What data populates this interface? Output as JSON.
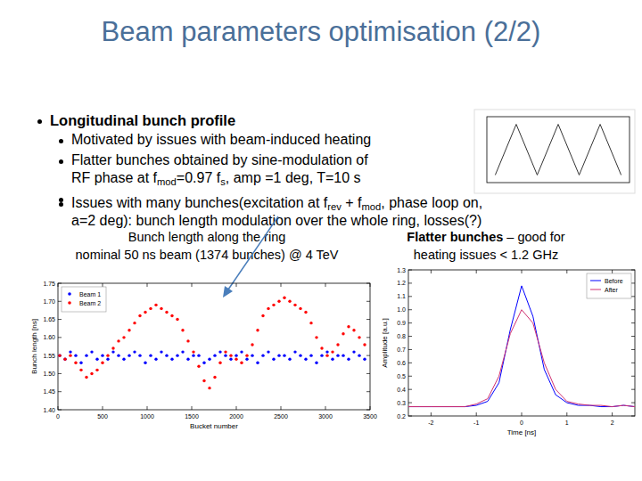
{
  "slide": {
    "title": "Beam parameters optimisation (2/2)",
    "bullets": [
      {
        "text": "Longitudinal bunch profile",
        "sub": [
          [
            [
              "Motivated by issues with beam-induced heating"
            ]
          ],
          [
            [
              "Flatter bunches obtained by sine-modulation of"
            ],
            [
              "RF phase at f",
              {
                "sub": "mod"
              },
              "=0.97 f",
              {
                "sub": "s"
              },
              ", amp =1 deg, T=10 s"
            ]
          ],
          [
            [
              "Issues with many bunches(excitation at f",
              {
                "sub": "rev"
              },
              " + f",
              {
                "sub": "mod"
              },
              ", phase loop on,"
            ],
            [
              "a=2 deg): bunch length modulation over the whole ring, losses(?)"
            ]
          ]
        ]
      }
    ],
    "captions": [
      [
        [
          "Bunch length along the ring"
        ],
        [
          "nominal 50 ns beam (1374 bunches) @ 4 TeV"
        ]
      ],
      [
        [
          {
            "b": "Flatter bunches"
          },
          " – good for"
        ],
        [
          "heating issues < 1.2 GHz"
        ]
      ]
    ]
  },
  "chart_data": [
    {
      "type": "line",
      "x": [
        0,
        5,
        10,
        15,
        20,
        25,
        30
      ],
      "values": [
        -1,
        1,
        -1,
        1,
        -1,
        1,
        -1
      ],
      "color": "#333333",
      "xlim": [
        -2,
        32
      ],
      "ylim": [
        -1.3,
        1.3
      ],
      "tick_labels": false,
      "grid": false
    },
    {
      "type": "scatter",
      "x_label": "Bucket number",
      "y_label": "Bunch length [ns]",
      "x": [
        20,
        80,
        140,
        200,
        260,
        320,
        380,
        440,
        500,
        560,
        620,
        680,
        740,
        800,
        860,
        920,
        980,
        1040,
        1100,
        1160,
        1220,
        1280,
        1340,
        1400,
        1460,
        1520,
        1580,
        1640,
        1700,
        1760,
        1820,
        1880,
        1940,
        2000,
        2060,
        2120,
        2180,
        2240,
        2300,
        2360,
        2420,
        2480,
        2540,
        2600,
        2660,
        2720,
        2780,
        2840,
        2900,
        2960,
        3020,
        3080,
        3140,
        3200,
        3260,
        3320,
        3380,
        3440
      ],
      "series": [
        {
          "name": "Beam 1",
          "color": "#0000ff",
          "marker": "circle",
          "values": [
            1.55,
            1.54,
            1.56,
            1.55,
            1.53,
            1.55,
            1.56,
            1.54,
            1.55,
            1.54,
            1.56,
            1.55,
            1.54,
            1.55,
            1.56,
            1.55,
            1.53,
            1.55,
            1.54,
            1.56,
            1.55,
            1.54,
            1.55,
            1.56,
            1.54,
            1.55,
            1.55,
            1.53,
            1.54,
            1.55,
            1.56,
            1.55,
            1.54,
            1.55,
            1.56,
            1.54,
            1.55,
            1.53,
            1.55,
            1.56,
            1.54,
            1.55,
            1.55,
            1.54,
            1.56,
            1.55,
            1.54,
            1.55,
            1.53,
            1.55,
            1.56,
            1.54,
            1.55,
            1.55,
            1.54,
            1.56,
            1.55,
            1.54
          ]
        },
        {
          "name": "Beam 2",
          "color": "#ff0000",
          "marker": "circle",
          "values": [
            1.55,
            1.54,
            1.55,
            1.53,
            1.51,
            1.49,
            1.5,
            1.51,
            1.53,
            1.55,
            1.57,
            1.59,
            1.6,
            1.62,
            1.64,
            1.66,
            1.67,
            1.68,
            1.69,
            1.68,
            1.67,
            1.66,
            1.65,
            1.62,
            1.59,
            1.56,
            1.52,
            1.48,
            1.46,
            1.49,
            1.53,
            1.56,
            1.55,
            1.54,
            1.53,
            1.55,
            1.58,
            1.62,
            1.66,
            1.68,
            1.69,
            1.7,
            1.71,
            1.7,
            1.69,
            1.68,
            1.67,
            1.64,
            1.6,
            1.57,
            1.55,
            1.56,
            1.58,
            1.61,
            1.63,
            1.62,
            1.6,
            1.58
          ]
        }
      ],
      "xlim": [
        0,
        3500
      ],
      "xticks": [
        0,
        500,
        1000,
        1500,
        2000,
        2500,
        3000,
        3500
      ],
      "ylim": [
        1.4,
        1.75
      ],
      "yticks": [
        {
          "value": 1.4,
          "label": "1.40"
        },
        1.45,
        {
          "value": 1.5,
          "label": "1.50"
        },
        1.55,
        {
          "value": 1.6,
          "label": "1.60"
        },
        1.65,
        {
          "value": 1.7,
          "label": "1.70"
        },
        1.75
      ],
      "legend": "upper left",
      "grid": false
    },
    {
      "type": "line",
      "x_label": "Time [ns]",
      "y_label": "Amplitude [a.u.]",
      "x": [
        -2.5,
        -2.25,
        -2,
        -1.75,
        -1.5,
        -1.25,
        -1,
        -0.75,
        -0.5,
        -0.25,
        0,
        0.25,
        0.5,
        0.75,
        1,
        1.25,
        1.5,
        1.75,
        2,
        2.25,
        2.5
      ],
      "series": [
        {
          "name": "Before",
          "color": "#0000ff",
          "line_style": "solid",
          "values": [
            0.27,
            0.27,
            0.27,
            0.27,
            0.27,
            0.27,
            0.28,
            0.31,
            0.45,
            0.85,
            1.18,
            0.95,
            0.55,
            0.36,
            0.3,
            0.28,
            0.28,
            0.27,
            0.27,
            0.28,
            0.27
          ]
        },
        {
          "name": "After",
          "color": "#d03070",
          "line_style": "solid",
          "values": [
            0.27,
            0.27,
            0.27,
            0.27,
            0.27,
            0.27,
            0.29,
            0.33,
            0.5,
            0.82,
            1.0,
            0.9,
            0.6,
            0.4,
            0.31,
            0.29,
            0.28,
            0.28,
            0.27,
            0.28,
            0.27
          ]
        }
      ],
      "xlim": [
        -2.5,
        2.5
      ],
      "xticks": [
        -2,
        -1,
        0,
        1,
        2
      ],
      "ylim": [
        0.2,
        1.3
      ],
      "yticks": [
        0.2,
        0.3,
        0.4,
        0.5,
        0.6,
        0.7,
        0.8,
        0.9,
        {
          "value": 1,
          "label": "1.0"
        },
        1.1,
        1.2,
        1.3
      ],
      "legend": "upper right",
      "grid": false
    }
  ]
}
